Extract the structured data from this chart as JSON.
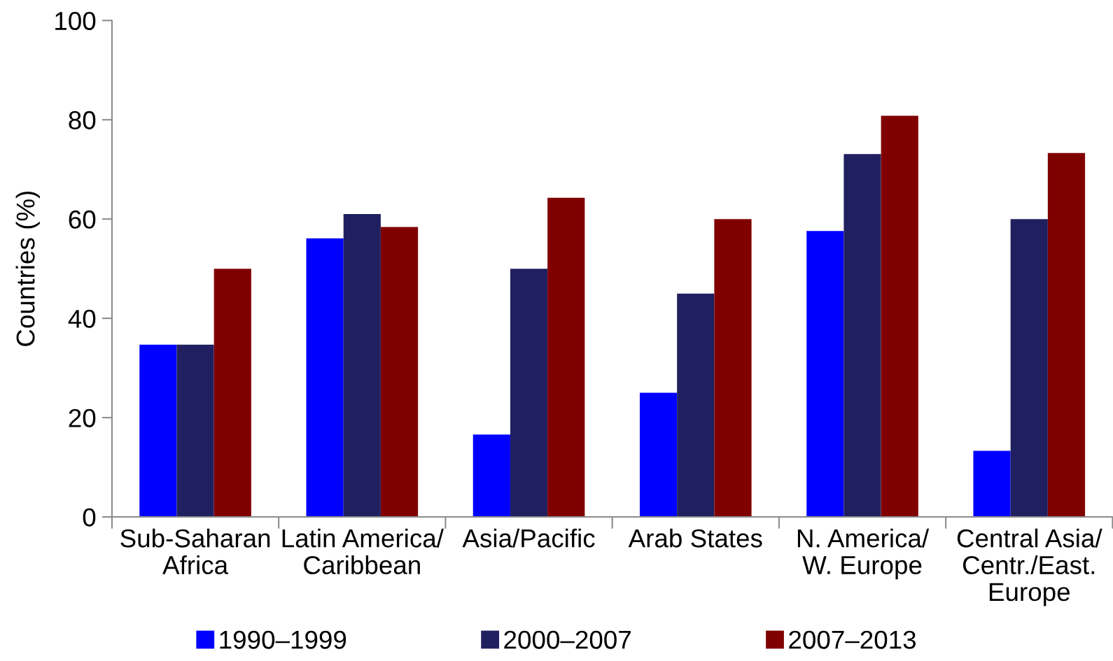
{
  "chart_data": {
    "type": "bar",
    "ylabel": "Countries (%)",
    "categories": [
      "Sub-Saharan\nAfrica",
      "Latin America/\nCaribbean",
      "Asia/Pacific",
      "Arab States",
      "N. America/\nW. Europe",
      "Central Asia/\nCentr./East.\nEurope"
    ],
    "series": [
      {
        "name": "1990–1999",
        "color": "#0000ff",
        "values": [
          34.7,
          56.1,
          16.6,
          25,
          57.6,
          13.3
        ]
      },
      {
        "name": "2000–2007",
        "color": "#202060",
        "values": [
          34.7,
          61,
          50,
          45,
          73.1,
          60
        ]
      },
      {
        "name": "2007–2013",
        "color": "#800000",
        "values": [
          50,
          58.4,
          64.3,
          60,
          80.8,
          73.3
        ]
      }
    ],
    "ylim": [
      0,
      100
    ],
    "yticks": [
      0,
      20,
      40,
      60,
      80,
      100
    ],
    "grid": false,
    "legend": "bottom"
  }
}
